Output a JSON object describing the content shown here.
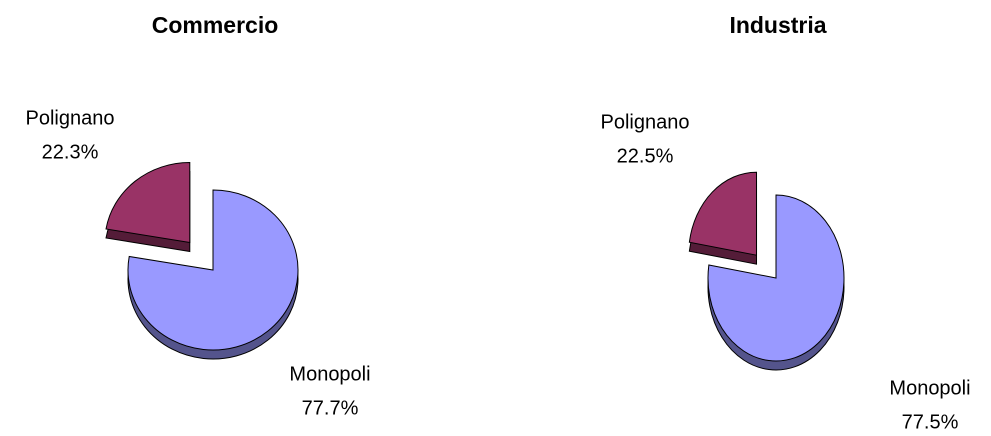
{
  "chart_data": [
    {
      "type": "pie",
      "title": "Commercio",
      "categories": [
        "Polignano",
        "Monopoli"
      ],
      "values": [
        22.3,
        77.7
      ],
      "value_labels": [
        "22.3%",
        "77.7%"
      ],
      "colors": [
        "#993366",
        "#9999ff"
      ]
    },
    {
      "type": "pie",
      "title": "Industria",
      "categories": [
        "Polignano",
        "Monopoli"
      ],
      "values": [
        22.5,
        77.5
      ],
      "value_labels": [
        "22.5%",
        "77.5%"
      ],
      "colors": [
        "#993366",
        "#9999ff"
      ]
    }
  ]
}
